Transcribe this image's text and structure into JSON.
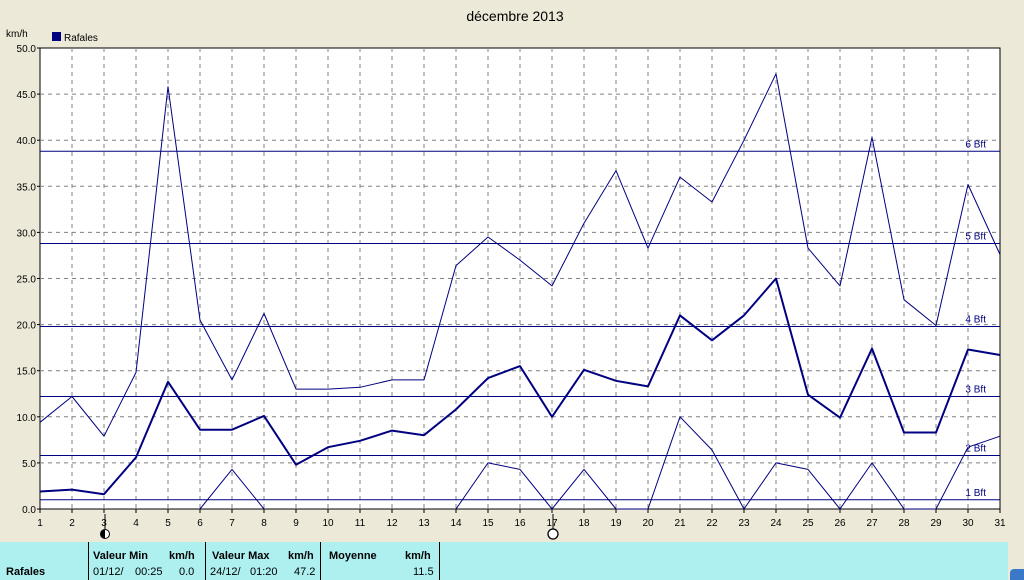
{
  "chart_data": {
    "type": "line",
    "title": "décembre 2013",
    "ylabel": "km/h",
    "ylim": [
      0,
      50
    ],
    "y_ticks": [
      "0.0",
      "5.0",
      "10.0",
      "15.0",
      "20.0",
      "25.0",
      "30.0",
      "35.0",
      "40.0",
      "45.0",
      "50.0"
    ],
    "x": [
      1,
      2,
      3,
      4,
      5,
      6,
      7,
      8,
      9,
      10,
      11,
      12,
      13,
      14,
      15,
      16,
      17,
      18,
      19,
      20,
      21,
      22,
      23,
      24,
      25,
      26,
      27,
      28,
      29,
      30,
      31
    ],
    "legend": {
      "label": "Rafales",
      "color": "#000080",
      "position": "top-left"
    },
    "grid": true,
    "series": [
      {
        "key": "max",
        "width": 1,
        "color": "#000080",
        "values": [
          9.4,
          12.2,
          7.9,
          14.8,
          45.8,
          20.5,
          14.0,
          21.2,
          13.0,
          13.0,
          13.2,
          14.0,
          14.0,
          26.4,
          29.5,
          27.0,
          24.2,
          31.0,
          36.7,
          28.3,
          36.0,
          33.3,
          40.0,
          47.2,
          28.3,
          24.2,
          40.3,
          22.7,
          19.9,
          35.2,
          27.6
        ]
      },
      {
        "key": "avg",
        "width": 2,
        "color": "#000080",
        "values": [
          1.9,
          2.1,
          1.6,
          5.6,
          13.8,
          8.6,
          8.6,
          10.1,
          4.8,
          6.7,
          7.4,
          8.5,
          8.0,
          10.8,
          14.2,
          15.5,
          10.0,
          15.1,
          13.9,
          13.3,
          21.0,
          18.3,
          21.0,
          25.0,
          12.4,
          9.9,
          17.4,
          8.3,
          8.3,
          17.3,
          16.7
        ]
      },
      {
        "key": "min",
        "width": 1,
        "color": "#000080",
        "values": [
          null,
          null,
          null,
          null,
          null,
          0.0,
          4.3,
          0.0,
          null,
          null,
          null,
          null,
          null,
          0.0,
          5.0,
          4.3,
          0.0,
          4.3,
          0.0,
          0.0,
          10.0,
          6.4,
          0.0,
          5.0,
          4.3,
          0.0,
          5.0,
          0.0,
          0.0,
          6.7,
          7.9
        ]
      }
    ],
    "beaufort_lines": [
      {
        "value": 1.0,
        "label": "1 Bft"
      },
      {
        "value": 5.8,
        "label": "2 Bft"
      },
      {
        "value": 12.2,
        "label": "3 Bft"
      },
      {
        "value": 19.8,
        "label": "4 Bft"
      },
      {
        "value": 28.8,
        "label": "5 Bft"
      },
      {
        "value": 38.8,
        "label": "6 Bft"
      }
    ],
    "moon_markers": [
      {
        "day": 3,
        "phase": "new-moon"
      },
      {
        "day": 17,
        "phase": "full-moon"
      }
    ]
  },
  "footer": {
    "row_label": "Rafales",
    "min_header": "Valeur Min",
    "min_unit": "km/h",
    "min_date": "01/12/",
    "min_time": "00:25",
    "min_value": "0.0",
    "max_header": "Valeur Max",
    "max_unit": "km/h",
    "max_date": "24/12/",
    "max_time": "01:20",
    "max_value": "47.2",
    "avg_header": "Moyenne",
    "avg_unit": "km/h",
    "avg_value": "11.5"
  }
}
